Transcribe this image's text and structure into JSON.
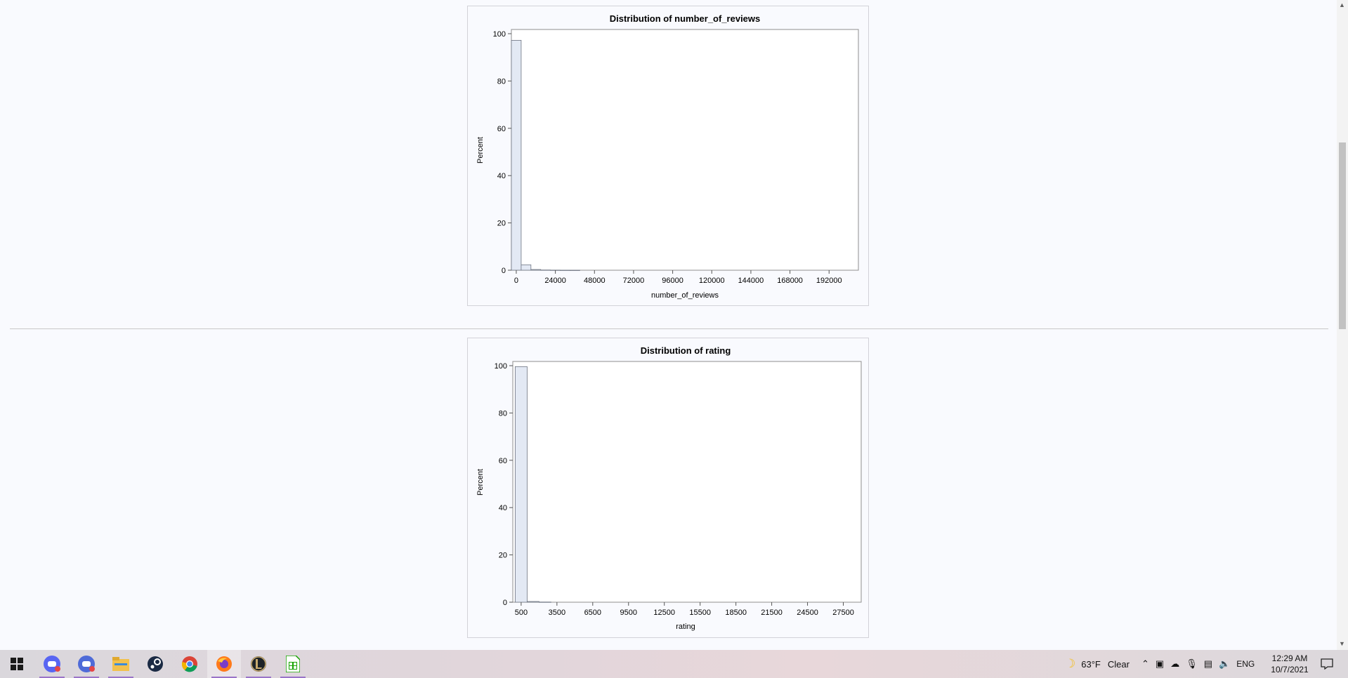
{
  "chart_data": [
    {
      "type": "bar",
      "title": "Distribution of number_of_reviews",
      "xlabel": "number_of_reviews",
      "ylabel": "Percent",
      "x_ticks": [
        "0",
        "24000",
        "48000",
        "72000",
        "96000",
        "120000",
        "144000",
        "168000",
        "192000"
      ],
      "y_ticks": [
        "0",
        "20",
        "40",
        "60",
        "80",
        "100"
      ],
      "ylim": [
        0,
        100
      ],
      "bin_width": 6000,
      "bins_start": -3000,
      "values": [
        97.2,
        2.3,
        0.3,
        0.1,
        0.05,
        0.02,
        0.01
      ],
      "xlim": [
        -3000,
        210000
      ]
    },
    {
      "type": "bar",
      "title": "Distribution of rating",
      "xlabel": "rating",
      "ylabel": "Percent",
      "x_ticks": [
        "500",
        "3500",
        "6500",
        "9500",
        "12500",
        "15500",
        "18500",
        "21500",
        "24500",
        "27500"
      ],
      "y_ticks": [
        "0",
        "20",
        "40",
        "60",
        "80",
        "100"
      ],
      "ylim": [
        0,
        100
      ],
      "bin_width": 1000,
      "bins_start": 0,
      "values": [
        99.6,
        0.3,
        0.08
      ],
      "xlim": [
        -200,
        29000
      ]
    }
  ],
  "taskbar": {
    "apps": [
      "start-icon",
      "discord-icon",
      "discord-ptb-icon",
      "file-explorer-icon",
      "steam-icon",
      "chrome-icon",
      "firefox-icon",
      "league-of-legends-icon",
      "libreoffice-calc-icon"
    ],
    "weather_temp": "63°F",
    "weather_desc": "Clear",
    "language": "ENG",
    "time": "12:29 AM",
    "date": "10/7/2021"
  },
  "colors": {
    "bar_fill": "#e3e9f4",
    "bar_stroke": "#6d7380",
    "page_bg": "#f9fafe"
  }
}
